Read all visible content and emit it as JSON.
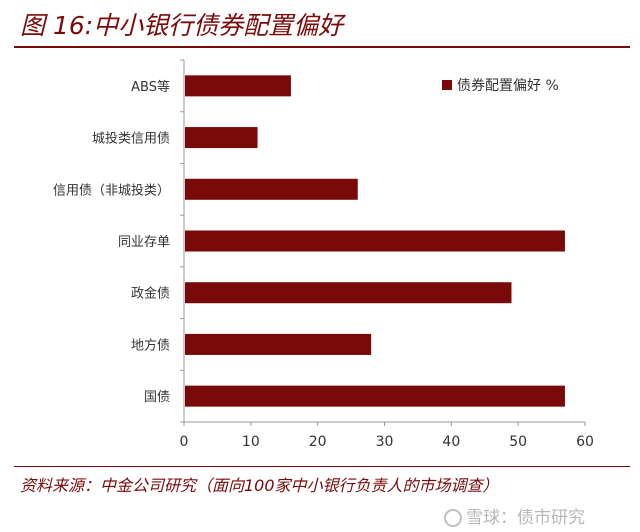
{
  "header": {
    "title": "图 16:中小银行债券配置偏好"
  },
  "chart_data": {
    "type": "bar",
    "orientation": "horizontal",
    "categories": [
      "ABS等",
      "城投类信用债",
      "信用债（非城投类）",
      "同业存单",
      "政金债",
      "地方债",
      "国债"
    ],
    "series": [
      {
        "name": "债券配置偏好 %",
        "values": [
          16,
          11,
          26,
          57,
          49,
          28,
          57
        ],
        "color": "#7a0a0a"
      }
    ],
    "xlim": [
      0,
      60
    ],
    "xticks": [
      0,
      10,
      20,
      30,
      40,
      50,
      60
    ],
    "grid": false,
    "legend_position": "top-right"
  },
  "footer": {
    "source": "资料来源：中金公司研究（面向100家中小银行负责人的市场调查）",
    "watermark": "雪球：债市研究"
  }
}
